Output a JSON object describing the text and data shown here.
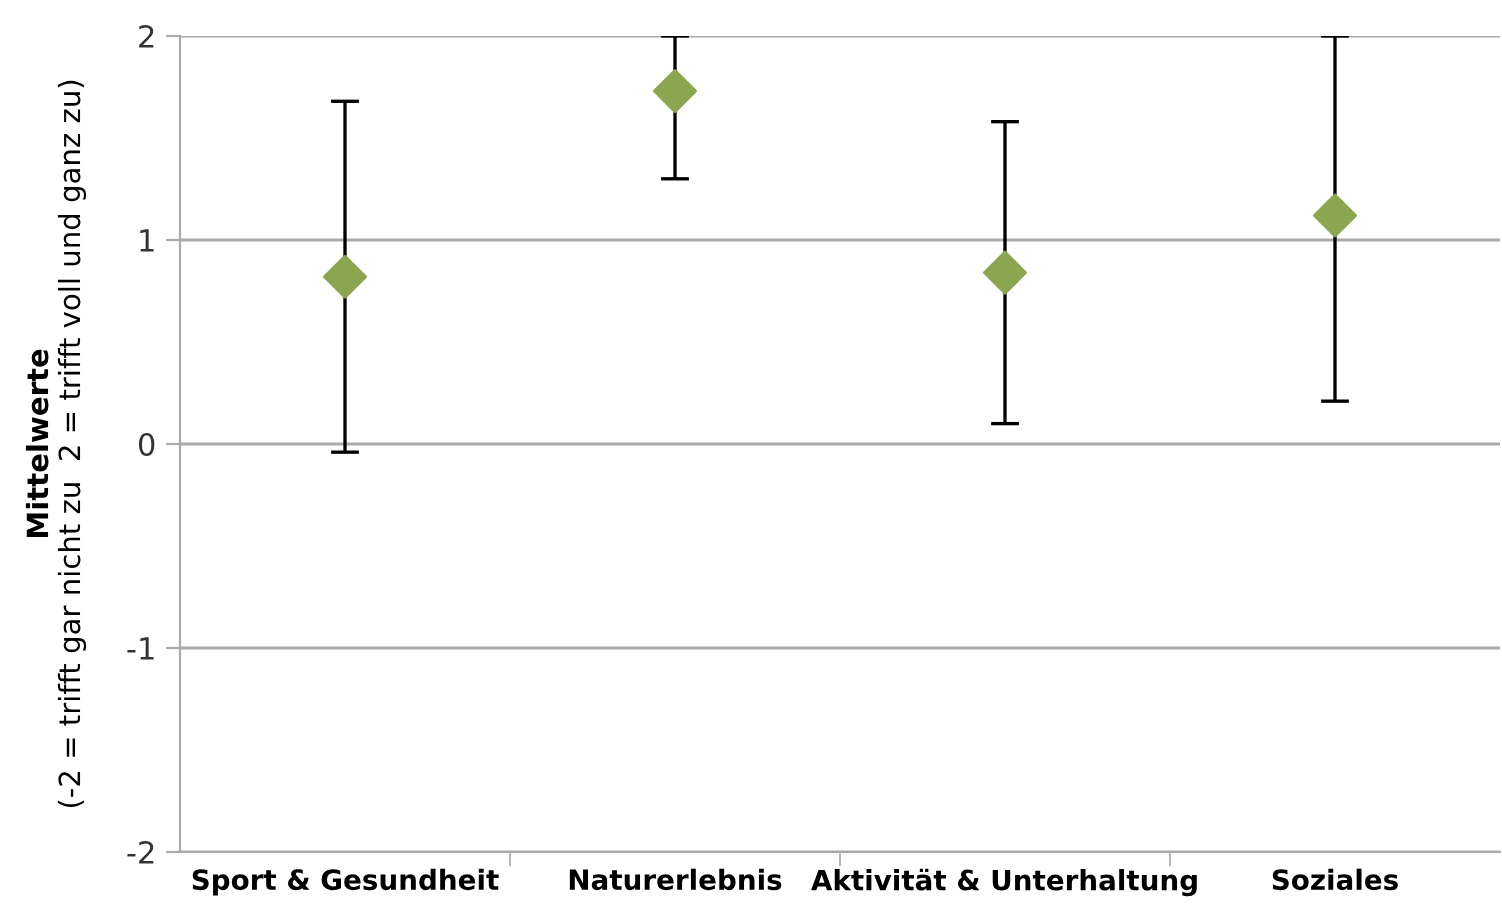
{
  "chart_data": {
    "type": "scatter",
    "ylabel": "Mittelwerte\n(-2 = trifft gar nicht zu  2 = trifft voll und ganz zu)",
    "categories": [
      "Sport & Gesundheit",
      "Naturerlebnis",
      "Aktivität & Unterhaltung",
      "Soziales"
    ],
    "values": [
      0.82,
      1.73,
      0.84,
      1.12
    ],
    "errors": [
      0.86,
      [
        1.3,
        2
      ],
      0.74,
      [
        0.21,
        2
      ]
    ],
    "color": "#8aa64e",
    "marker": "diamond",
    "ylim": [
      -2,
      2
    ],
    "yticks": [
      -2,
      -1,
      0,
      1,
      2
    ],
    "grid": "y",
    "legend": false
  }
}
